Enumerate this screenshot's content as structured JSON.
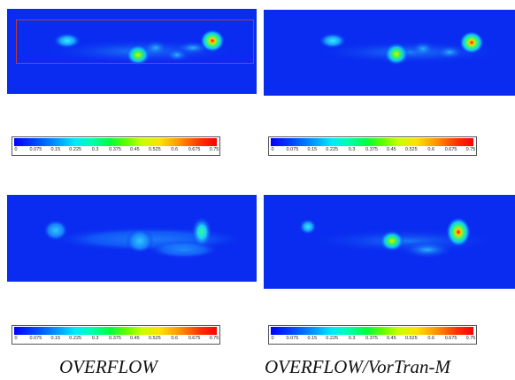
{
  "colorbar_ticks": [
    "0",
    "0.075",
    "0.15",
    "0.225",
    "0.3",
    "0.375",
    "0.45",
    "0.525",
    "0.6",
    "0.675",
    "0.75"
  ],
  "captions": {
    "left": "OVERFLOW",
    "right": "OVERFLOW/VorTran-M"
  },
  "colors": {
    "background": "#0a2cf0",
    "highlight_box": "#c0392b"
  }
}
